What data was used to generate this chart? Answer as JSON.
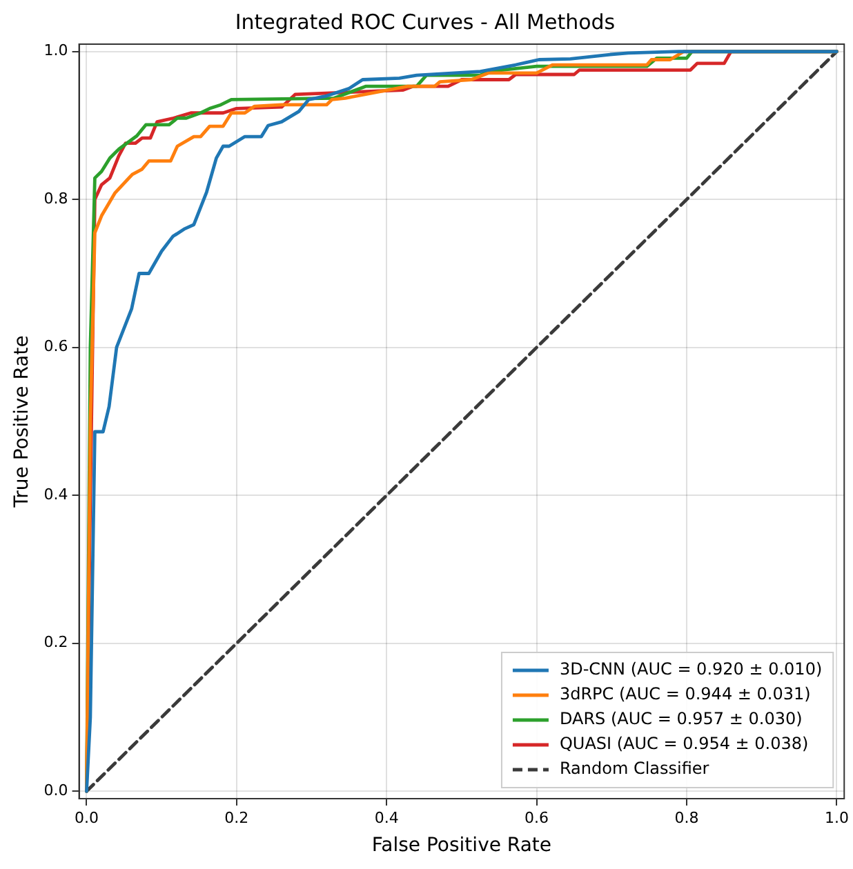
{
  "chart_data": {
    "type": "line",
    "title": "Integrated ROC Curves - All Methods",
    "xlabel": "False Positive Rate",
    "ylabel": "True Positive Rate",
    "xlim": [
      -0.01,
      1.01
    ],
    "ylim": [
      -0.01,
      1.01
    ],
    "xticks": [
      {
        "value": 0,
        "label": "0.0"
      },
      {
        "value": 0.2,
        "label": "0.2"
      },
      {
        "value": 0.4,
        "label": "0.4"
      },
      {
        "value": 0.6,
        "label": "0.6"
      },
      {
        "value": 0.8,
        "label": "0.8"
      },
      {
        "value": 1,
        "label": "1.0"
      }
    ],
    "yticks": [
      {
        "value": 0,
        "label": "0.0"
      },
      {
        "value": 0.2,
        "label": "0.2"
      },
      {
        "value": 0.4,
        "label": "0.4"
      },
      {
        "value": 0.6,
        "label": "0.6"
      },
      {
        "value": 0.8,
        "label": "0.8"
      },
      {
        "value": 1,
        "label": "1.0"
      }
    ],
    "grid": true,
    "legend": "bottom right",
    "marker": "none",
    "line_style": "solid",
    "series": [
      {
        "name": "3D-CNN (AUC = 0.920 ± 0.010)",
        "color": "#1f77b4",
        "x": [
          0,
          0.005,
          0.011,
          0.022,
          0.03,
          0.04,
          0.06,
          0.07,
          0.083,
          0.1,
          0.115,
          0.13,
          0.143,
          0.16,
          0.173,
          0.182,
          0.19,
          0.211,
          0.233,
          0.242,
          0.26,
          0.283,
          0.296,
          0.32,
          0.35,
          0.368,
          0.417,
          0.44,
          0.525,
          0.572,
          0.603,
          0.645,
          0.698,
          0.722,
          0.79,
          1
        ],
        "values": [
          0,
          0.1,
          0.486,
          0.486,
          0.52,
          0.6,
          0.652,
          0.7,
          0.7,
          0.73,
          0.75,
          0.76,
          0.766,
          0.81,
          0.856,
          0.872,
          0.872,
          0.885,
          0.885,
          0.9,
          0.905,
          0.919,
          0.935,
          0.94,
          0.95,
          0.962,
          0.964,
          0.968,
          0.973,
          0.982,
          0.989,
          0.99,
          0.996,
          0.998,
          1,
          1
        ]
      },
      {
        "name": "3dRPC (AUC = 0.944 ± 0.031)",
        "color": "#ff7f0e",
        "x": [
          0,
          0.005,
          0.011,
          0.02,
          0.038,
          0.061,
          0.074,
          0.083,
          0.112,
          0.121,
          0.143,
          0.152,
          0.164,
          0.182,
          0.193,
          0.211,
          0.224,
          0.26,
          0.32,
          0.327,
          0.345,
          0.428,
          0.464,
          0.471,
          0.513,
          0.536,
          0.6,
          0.621,
          0.747,
          0.753,
          0.778,
          0.796,
          1
        ],
        "values": [
          0,
          0.5,
          0.755,
          0.778,
          0.809,
          0.834,
          0.841,
          0.852,
          0.852,
          0.872,
          0.885,
          0.885,
          0.899,
          0.899,
          0.917,
          0.917,
          0.926,
          0.928,
          0.928,
          0.935,
          0.937,
          0.953,
          0.953,
          0.959,
          0.962,
          0.971,
          0.971,
          0.982,
          0.982,
          0.989,
          0.989,
          1,
          1
        ]
      },
      {
        "name": "DARS (AUC = 0.957 ± 0.030)",
        "color": "#2ca02c",
        "x": [
          0,
          0.005,
          0.011,
          0.02,
          0.031,
          0.043,
          0.067,
          0.079,
          0.11,
          0.121,
          0.133,
          0.152,
          0.164,
          0.179,
          0.193,
          0.33,
          0.372,
          0.44,
          0.453,
          0.525,
          0.536,
          0.6,
          0.747,
          0.76,
          0.8,
          0.807,
          1
        ],
        "values": [
          0,
          0.6,
          0.829,
          0.838,
          0.856,
          0.868,
          0.886,
          0.901,
          0.901,
          0.91,
          0.91,
          0.917,
          0.923,
          0.928,
          0.935,
          0.937,
          0.953,
          0.953,
          0.968,
          0.968,
          0.973,
          0.98,
          0.98,
          0.991,
          0.991,
          1,
          1
        ]
      },
      {
        "name": "QUASI (AUC = 0.954 ± 0.038)",
        "color": "#d62728",
        "x": [
          0,
          0.005,
          0.011,
          0.02,
          0.031,
          0.043,
          0.052,
          0.065,
          0.074,
          0.085,
          0.094,
          0.116,
          0.139,
          0.182,
          0.2,
          0.26,
          0.278,
          0.422,
          0.435,
          0.482,
          0.5,
          0.563,
          0.572,
          0.65,
          0.657,
          0.805,
          0.814,
          0.85,
          0.859,
          1
        ],
        "values": [
          0,
          0.4,
          0.8,
          0.82,
          0.829,
          0.859,
          0.876,
          0.876,
          0.883,
          0.883,
          0.905,
          0.91,
          0.917,
          0.917,
          0.923,
          0.925,
          0.942,
          0.948,
          0.953,
          0.953,
          0.962,
          0.962,
          0.969,
          0.969,
          0.975,
          0.975,
          0.984,
          0.984,
          1,
          1
        ]
      },
      {
        "name": "Random Classifier",
        "color": "#3a3a3a",
        "line_style": "dashed",
        "x": [
          0,
          1
        ],
        "values": [
          0,
          1
        ]
      }
    ]
  }
}
